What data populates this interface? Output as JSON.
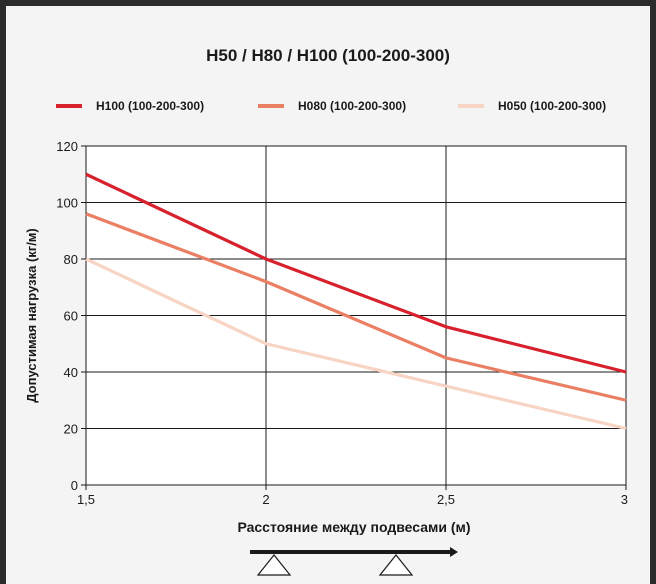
{
  "chart_data": {
    "type": "line",
    "title": "H50 / H80 / H100 (100-200-300)",
    "xlabel": "Расстояние между подвесами (м)",
    "ylabel": "Допустимая нагрузка (кг/м)",
    "x": [
      1.5,
      2,
      2.5,
      3
    ],
    "x_tick_labels": [
      "1,5",
      "2",
      "2,5",
      "3"
    ],
    "y_ticks": [
      0,
      20,
      40,
      60,
      80,
      100,
      120
    ],
    "xlim": [
      1.5,
      3
    ],
    "ylim": [
      0,
      120
    ],
    "grid": true,
    "legend_position": "top",
    "series": [
      {
        "name": "H100 (100-200-300)",
        "color": "#d7222e",
        "values": [
          110,
          80,
          56,
          40
        ]
      },
      {
        "name": "H080 (100-200-300)",
        "color": "#ea7f63",
        "values": [
          96,
          72,
          45,
          30
        ]
      },
      {
        "name": "H050 (100-200-300)",
        "color": "#f7d4c3",
        "values": [
          80,
          50,
          35,
          20
        ]
      }
    ]
  }
}
